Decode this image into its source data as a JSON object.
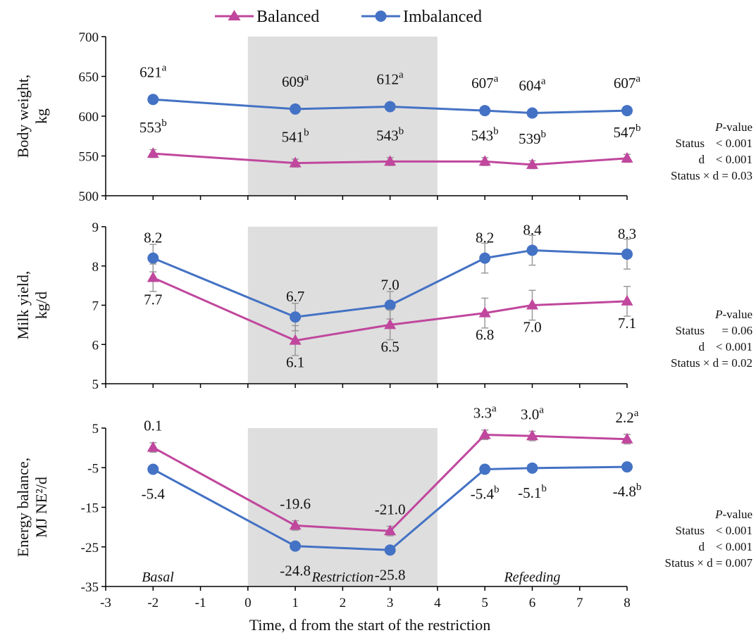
{
  "legend": {
    "balanced": "Balanced",
    "imbalanced": "Imbalanced"
  },
  "colors": {
    "balanced": "#c0479d",
    "imbalanced": "#4472c4",
    "restriction_shade": "#dedede",
    "error_bar": "#9a9a9a"
  },
  "x_axis": {
    "title": "Time, d from the start of the restriction",
    "ticks": [
      "-3",
      "-2",
      "-1",
      "0",
      "1",
      "2",
      "3",
      "4",
      "5",
      "6",
      "7",
      "8"
    ]
  },
  "phases": {
    "basal": "Basal",
    "restriction": "Restriction",
    "refeeding": "Refeeding"
  },
  "chart_data": [
    {
      "type": "line",
      "ylabel": [
        "Body weight,",
        "kg"
      ],
      "ylim": [
        500,
        700
      ],
      "yticks": [
        "700",
        "650",
        "600",
        "550",
        "500"
      ],
      "x": [
        -2,
        1,
        3,
        5,
        6,
        8
      ],
      "shaded_x_range": [
        0,
        4
      ],
      "series": [
        {
          "name": "Imbalanced",
          "values": [
            621,
            609,
            612,
            607,
            604,
            607
          ],
          "error": [
            2,
            2,
            2,
            2,
            2,
            2
          ],
          "labels": [
            "621",
            "609",
            "612",
            "607",
            "604",
            "607"
          ],
          "sup": [
            "a",
            "a",
            "a",
            "a",
            "a",
            "a"
          ]
        },
        {
          "name": "Balanced",
          "values": [
            553,
            541,
            543,
            543,
            539,
            547
          ],
          "error": [
            5,
            5,
            5,
            5,
            5,
            5
          ],
          "labels": [
            "553",
            "541",
            "543",
            "543",
            "539",
            "547"
          ],
          "sup": [
            "b",
            "b",
            "b",
            "b",
            "b",
            "b"
          ]
        }
      ],
      "pvalue": {
        "title": "-value",
        "title_italic": "P",
        "rows": [
          [
            "Status",
            "< 0.001"
          ],
          [
            "d",
            "< 0.001"
          ],
          [
            "Status × d = 0.03",
            ""
          ]
        ]
      }
    },
    {
      "type": "line",
      "ylabel": [
        "Milk yield,",
        "kg/d"
      ],
      "ylim": [
        5,
        9
      ],
      "yticks": [
        "9",
        "8",
        "7",
        "6",
        "5"
      ],
      "x": [
        -2,
        1,
        3,
        5,
        6,
        8
      ],
      "shaded_x_range": [
        0,
        4
      ],
      "series": [
        {
          "name": "Imbalanced",
          "values": [
            8.2,
            6.7,
            7.0,
            8.2,
            8.4,
            8.3
          ],
          "error": [
            0.35,
            0.35,
            0.35,
            0.38,
            0.38,
            0.38
          ],
          "labels": [
            "8.2",
            "6.7",
            "7.0",
            "8.2",
            "8.4",
            "8.3"
          ]
        },
        {
          "name": "Balanced",
          "values": [
            7.7,
            6.1,
            6.5,
            6.8,
            7.0,
            7.1
          ],
          "error": [
            0.35,
            0.38,
            0.38,
            0.38,
            0.38,
            0.38
          ],
          "labels": [
            "7.7",
            "6.1",
            "6.5",
            "6.8",
            "7.0",
            "7.1"
          ]
        }
      ],
      "pvalue": {
        "title": "-value",
        "title_italic": "P",
        "rows": [
          [
            "Status",
            "= 0.06"
          ],
          [
            "d",
            "< 0.001"
          ],
          [
            "Status × d = 0.02",
            ""
          ]
        ]
      }
    },
    {
      "type": "line",
      "ylabel": [
        "Energy balance,",
        "MJ NE²/d"
      ],
      "ylim": [
        -35,
        5
      ],
      "yticks": [
        "5",
        "-5",
        "-15",
        "-25",
        "-35"
      ],
      "x": [
        -2,
        1,
        3,
        5,
        6,
        8
      ],
      "shaded_x_range": [
        0,
        4
      ],
      "series": [
        {
          "name": "Balanced",
          "values": [
            0.1,
            -19.6,
            -21.0,
            3.3,
            3.0,
            2.2
          ],
          "error": [
            1.2,
            1.2,
            1.2,
            1.2,
            1.2,
            1.2
          ],
          "labels": [
            "0.1",
            "-19.6",
            "-21.0",
            "3.3",
            "3.0",
            "2.2"
          ],
          "sup": [
            "",
            "",
            "",
            "a",
            "a",
            "a"
          ]
        },
        {
          "name": "Imbalanced",
          "values": [
            -5.4,
            -24.8,
            -25.8,
            -5.4,
            -5.1,
            -4.8
          ],
          "error": [
            0.3,
            0.3,
            0.3,
            0.3,
            0.3,
            0.3
          ],
          "labels": [
            "-5.4",
            "-24.8",
            "-25.8",
            "-5.4",
            "-5.1",
            "-4.8"
          ],
          "sup": [
            "",
            "",
            "",
            "b",
            "b",
            "b"
          ]
        }
      ],
      "pvalue": {
        "title": "-value",
        "title_italic": "P",
        "rows": [
          [
            "Status",
            "< 0.001"
          ],
          [
            "d",
            "< 0.001"
          ],
          [
            "Status × d = 0.007",
            ""
          ]
        ]
      }
    }
  ]
}
